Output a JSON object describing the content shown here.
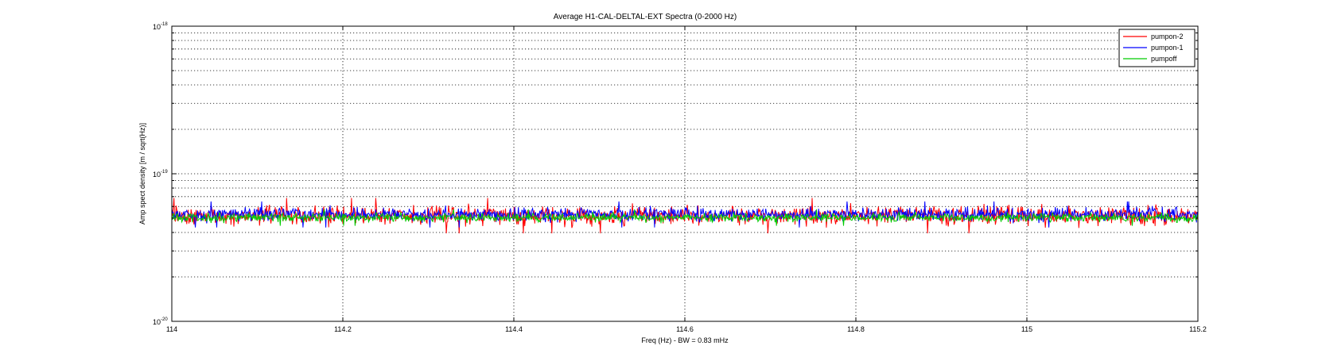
{
  "chart_data": {
    "type": "line",
    "title": "Average H1-CAL-DELTAL-EXT Spectra (0-2000 Hz)",
    "xlabel": "Freq (Hz) - BW = 0.83 mHz",
    "ylabel": "Amp spect density [m / sqrt(Hz)]",
    "xlim": [
      114,
      115.2
    ],
    "ylim": [
      1e-20,
      1e-18
    ],
    "yscale": "log",
    "x_ticks": [
      114,
      114.2,
      114.4,
      114.6,
      114.8,
      115,
      115.2
    ],
    "x_tick_labels": [
      "114",
      "114.2",
      "114.4",
      "114.6",
      "114.8",
      "115",
      "115.2"
    ],
    "y_tick_bases": [
      "10",
      "10",
      "10"
    ],
    "y_tick_exponents": [
      "-18",
      "-19",
      "-20"
    ],
    "y_tick_values": [
      1e-18,
      1e-19,
      1e-20
    ],
    "grid": true,
    "legend_position": "top-right",
    "series": [
      {
        "name": "pumpon-2",
        "color": "#ff0000",
        "median": 5.2e-20,
        "spread": 0.075,
        "range": [
          3.3e-20,
          7e-20
        ]
      },
      {
        "name": "pumpon-1",
        "color": "#0000ff",
        "median": 5.3e-20,
        "spread": 0.055,
        "range": [
          3.9e-20,
          6.6e-20
        ]
      },
      {
        "name": "pumpoff",
        "color": "#00cc00",
        "median": 5.05e-20,
        "spread": 0.035,
        "range": [
          4.4e-20,
          5.8e-20
        ]
      }
    ]
  }
}
